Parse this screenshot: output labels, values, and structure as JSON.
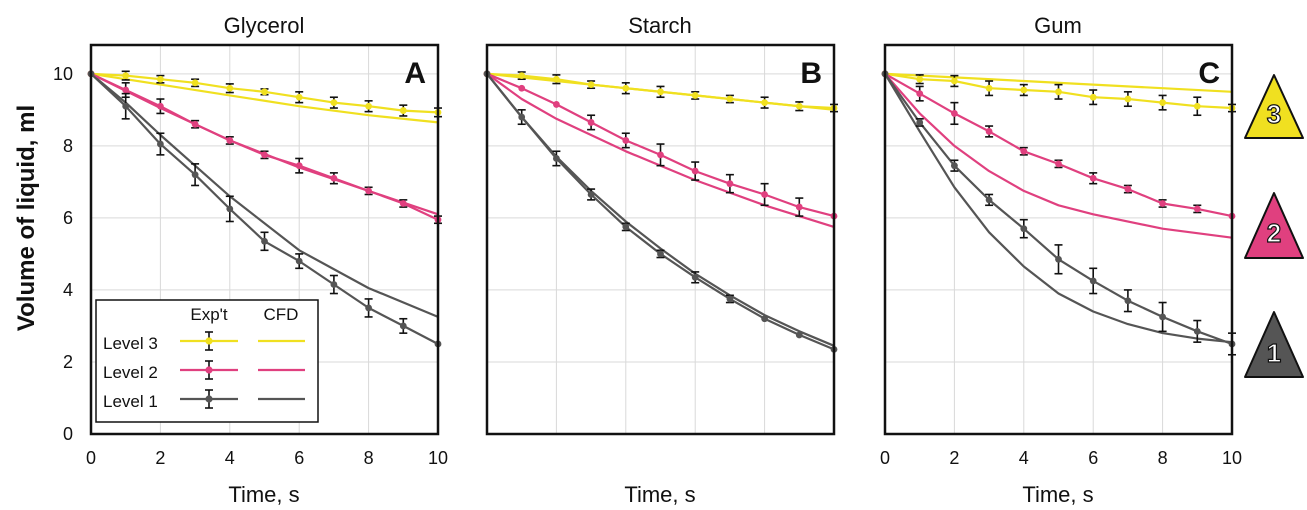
{
  "figure": {
    "ylabel": "Volume of liquid, ml",
    "xlabel": "Time, s",
    "legend": {
      "header_exp": "Exp't",
      "header_cfd": "CFD",
      "items": [
        {
          "label": "Level 3",
          "color": "#f0e020"
        },
        {
          "label": "Level 2",
          "color": "#e0407f"
        },
        {
          "label": "Level 1",
          "color": "#555555"
        }
      ]
    },
    "badges": [
      {
        "text": "3",
        "color": "#f0e020"
      },
      {
        "text": "2",
        "color": "#e0407f"
      },
      {
        "text": "1",
        "color": "#555555"
      }
    ]
  },
  "chart_data": [
    {
      "type": "line",
      "title": "Glycerol",
      "panel_letter": "A",
      "xlabel": "Time, s",
      "ylabel": "Volume of liquid, ml",
      "xlim": [
        0,
        10
      ],
      "ylim": [
        0,
        10.8
      ],
      "x_ticks": [
        0,
        2,
        4,
        6,
        8,
        10
      ],
      "y_ticks": [
        0,
        2,
        4,
        6,
        8,
        10
      ],
      "show_x_ticks": true,
      "show_y_ticks": true,
      "grid": true,
      "legend_position": "bottom-left",
      "experimental": [
        {
          "name": "Level 3",
          "color": "#f0e020",
          "x": [
            0,
            1,
            2,
            3,
            4,
            5,
            6,
            7,
            8,
            9,
            10
          ],
          "y": [
            10,
            9.95,
            9.85,
            9.75,
            9.6,
            9.5,
            9.35,
            9.2,
            9.1,
            8.98,
            8.93
          ],
          "err": [
            0,
            0.12,
            0.1,
            0.1,
            0.12,
            0.08,
            0.15,
            0.15,
            0.15,
            0.15,
            0.12
          ]
        },
        {
          "name": "Level 2",
          "color": "#e0407f",
          "x": [
            0,
            1,
            2,
            3,
            4,
            5,
            6,
            7,
            8,
            9,
            10
          ],
          "y": [
            10,
            9.55,
            9.1,
            8.6,
            8.15,
            7.75,
            7.45,
            7.1,
            6.75,
            6.4,
            5.95
          ],
          "err": [
            0,
            0.2,
            0.2,
            0.1,
            0.1,
            0.1,
            0.2,
            0.15,
            0.1,
            0.1,
            0.1
          ]
        },
        {
          "name": "Level 1",
          "color": "#555555",
          "x": [
            0,
            1,
            2,
            3,
            4,
            5,
            6,
            7,
            8,
            9,
            10
          ],
          "y": [
            10,
            9.1,
            8.05,
            7.2,
            6.25,
            5.35,
            4.8,
            4.15,
            3.5,
            3.0,
            2.5
          ],
          "err": [
            0,
            0.35,
            0.3,
            0.3,
            0.35,
            0.25,
            0.2,
            0.25,
            0.25,
            0.2,
            0
          ]
        }
      ],
      "cfd": [
        {
          "name": "Level 3",
          "color": "#f0e020",
          "x": [
            0,
            2,
            4,
            6,
            8,
            10
          ],
          "y": [
            10,
            9.7,
            9.4,
            9.1,
            8.85,
            8.65
          ]
        },
        {
          "name": "Level 2",
          "color": "#e0407f",
          "x": [
            0,
            2,
            4,
            6,
            8,
            10
          ],
          "y": [
            10,
            9.05,
            8.15,
            7.4,
            6.75,
            6.1
          ]
        },
        {
          "name": "Level 1",
          "color": "#555555",
          "x": [
            0,
            1,
            2,
            3,
            4,
            6,
            8,
            10
          ],
          "y": [
            10,
            9.2,
            8.3,
            7.45,
            6.6,
            5.1,
            4.05,
            3.25
          ]
        }
      ]
    },
    {
      "type": "line",
      "title": "Starch",
      "panel_letter": "B",
      "xlabel": "Time, s",
      "xlim": [
        0,
        10
      ],
      "ylim": [
        0,
        10.8
      ],
      "x_ticks": [
        0,
        2,
        4,
        6,
        8,
        10
      ],
      "y_ticks": [
        0,
        2,
        4,
        6,
        8,
        10
      ],
      "show_x_ticks": false,
      "show_y_ticks": false,
      "grid": true,
      "experimental": [
        {
          "name": "Level 3",
          "color": "#f0e020",
          "x": [
            0,
            1,
            2,
            3,
            4,
            5,
            6,
            7,
            8,
            9,
            10
          ],
          "y": [
            10,
            9.95,
            9.85,
            9.7,
            9.6,
            9.5,
            9.4,
            9.3,
            9.2,
            9.1,
            9.05
          ],
          "err": [
            0,
            0.1,
            0.12,
            0.1,
            0.15,
            0.15,
            0.1,
            0.1,
            0.15,
            0.12,
            0.1
          ]
        },
        {
          "name": "Level 2",
          "color": "#e0407f",
          "x": [
            0,
            1,
            2,
            3,
            4,
            5,
            6,
            7,
            8,
            9,
            10
          ],
          "y": [
            10,
            9.6,
            9.15,
            8.65,
            8.15,
            7.75,
            7.3,
            6.95,
            6.65,
            6.3,
            6.05
          ],
          "err": [
            0,
            0,
            0,
            0.2,
            0.2,
            0.3,
            0.25,
            0.25,
            0.3,
            0.25,
            0
          ]
        },
        {
          "name": "Level 1",
          "color": "#555555",
          "x": [
            0,
            1,
            2,
            3,
            4,
            5,
            6,
            7,
            8,
            9,
            10
          ],
          "y": [
            10,
            8.8,
            7.65,
            6.65,
            5.75,
            5.0,
            4.35,
            3.75,
            3.2,
            2.75,
            2.35
          ],
          "err": [
            0,
            0.2,
            0.2,
            0.15,
            0.1,
            0.1,
            0.15,
            0.1,
            0,
            0,
            0
          ]
        }
      ],
      "cfd": [
        {
          "name": "Level 3",
          "color": "#f0e020",
          "x": [
            0,
            2,
            4,
            6,
            8,
            10
          ],
          "y": [
            10,
            9.8,
            9.6,
            9.4,
            9.2,
            9.0
          ]
        },
        {
          "name": "Level 2",
          "color": "#e0407f",
          "x": [
            0,
            1,
            2,
            4,
            6,
            8,
            10
          ],
          "y": [
            10,
            9.3,
            8.75,
            7.85,
            7.05,
            6.35,
            5.75
          ]
        },
        {
          "name": "Level 1",
          "color": "#555555",
          "x": [
            0,
            1,
            2,
            3,
            4,
            5,
            6,
            7,
            8,
            9,
            10
          ],
          "y": [
            10,
            8.8,
            7.7,
            6.75,
            5.9,
            5.15,
            4.45,
            3.85,
            3.3,
            2.85,
            2.45
          ]
        }
      ]
    },
    {
      "type": "line",
      "title": "Gum",
      "panel_letter": "C",
      "xlabel": "Time, s",
      "xlim": [
        0,
        10
      ],
      "ylim": [
        0,
        10.8
      ],
      "x_ticks": [
        0,
        2,
        4,
        6,
        8,
        10
      ],
      "y_ticks": [
        0,
        2,
        4,
        6,
        8,
        10
      ],
      "show_x_ticks": true,
      "show_y_ticks": false,
      "grid": true,
      "experimental": [
        {
          "name": "Level 3",
          "color": "#f0e020",
          "x": [
            0,
            1,
            2,
            3,
            4,
            5,
            6,
            7,
            8,
            9,
            10
          ],
          "y": [
            10,
            9.85,
            9.8,
            9.6,
            9.55,
            9.5,
            9.35,
            9.3,
            9.2,
            9.1,
            9.05
          ],
          "err": [
            0,
            0.12,
            0.15,
            0.2,
            0.15,
            0.2,
            0.2,
            0.2,
            0.2,
            0.25,
            0.1
          ]
        },
        {
          "name": "Level 2",
          "color": "#e0407f",
          "x": [
            0,
            1,
            2,
            3,
            4,
            5,
            6,
            7,
            8,
            9,
            10
          ],
          "y": [
            10,
            9.45,
            8.9,
            8.4,
            7.85,
            7.5,
            7.1,
            6.8,
            6.4,
            6.25,
            6.05
          ],
          "err": [
            0,
            0.2,
            0.3,
            0.15,
            0.1,
            0.1,
            0.15,
            0.1,
            0.1,
            0.1,
            0
          ]
        },
        {
          "name": "Level 1",
          "color": "#555555",
          "x": [
            0,
            1,
            2,
            3,
            4,
            5,
            6,
            7,
            8,
            9,
            10
          ],
          "y": [
            10,
            8.65,
            7.45,
            6.5,
            5.7,
            4.85,
            4.25,
            3.7,
            3.25,
            2.85,
            2.5
          ],
          "err": [
            0,
            0.1,
            0.15,
            0.15,
            0.25,
            0.4,
            0.35,
            0.3,
            0.4,
            0.3,
            0.3
          ]
        }
      ],
      "cfd": [
        {
          "name": "Level 3",
          "color": "#f0e020",
          "x": [
            0,
            2,
            4,
            6,
            8,
            10
          ],
          "y": [
            10,
            9.9,
            9.8,
            9.7,
            9.6,
            9.5
          ]
        },
        {
          "name": "Level 2",
          "color": "#e0407f",
          "x": [
            0,
            1,
            2,
            3,
            4,
            5,
            6,
            8,
            10
          ],
          "y": [
            10,
            8.9,
            8.0,
            7.3,
            6.75,
            6.35,
            6.1,
            5.7,
            5.45
          ]
        },
        {
          "name": "Level 1",
          "color": "#555555",
          "x": [
            0,
            1,
            2,
            3,
            4,
            5,
            6,
            7,
            8,
            9,
            10
          ],
          "y": [
            10,
            8.4,
            6.85,
            5.6,
            4.65,
            3.9,
            3.4,
            3.05,
            2.8,
            2.65,
            2.55
          ]
        }
      ]
    }
  ]
}
